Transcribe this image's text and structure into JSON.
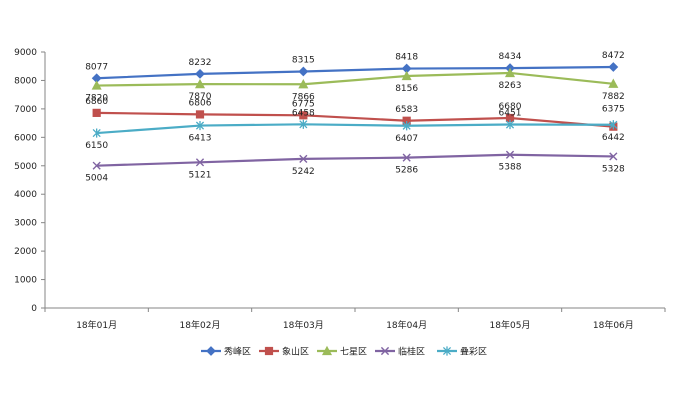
{
  "chart_data": {
    "type": "line",
    "categories": [
      "18年01月",
      "18年02月",
      "18年03月",
      "18年04月",
      "18年05月",
      "18年06月"
    ],
    "ylim": [
      0,
      9000
    ],
    "yticks": [
      0,
      1000,
      2000,
      3000,
      4000,
      5000,
      6000,
      7000,
      8000,
      9000
    ],
    "grid": false,
    "legend_position": "bottom",
    "data_labels": true,
    "series": [
      {
        "name": "秀峰区",
        "color": "#4472C4",
        "marker": "diamond",
        "values": [
          8077,
          8232,
          8315,
          8418,
          8434,
          8472
        ]
      },
      {
        "name": "象山区",
        "color": "#C0504D",
        "marker": "square",
        "values": [
          6860,
          6806,
          6775,
          6583,
          6680,
          6375
        ]
      },
      {
        "name": "七星区",
        "color": "#9BBB59",
        "marker": "triangle",
        "values": [
          7820,
          7870,
          7866,
          8156,
          8263,
          7882
        ]
      },
      {
        "name": "临桂区",
        "color": "#8064A2",
        "marker": "x",
        "values": [
          5004,
          5121,
          5242,
          5286,
          5388,
          5328
        ]
      },
      {
        "name": "叠彩区",
        "color": "#4BACC6",
        "marker": "star",
        "values": [
          6150,
          6413,
          6458,
          6407,
          6451,
          6442
        ]
      }
    ]
  }
}
